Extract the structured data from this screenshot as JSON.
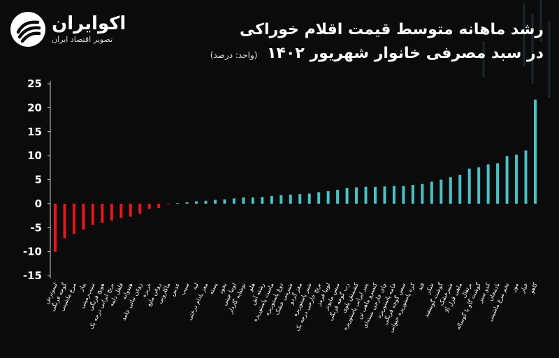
{
  "brand": {
    "name": "اکوایران",
    "tagline": "تصویر اقتصاد ایران"
  },
  "colors": {
    "background": "#0b0b0b",
    "positive": "#49c2c6",
    "negative": "#e8161b",
    "text": "#ffffff"
  },
  "chart_data": {
    "type": "bar",
    "title": "رشد ماهانه متوسط قیمت اقلام خوراکی",
    "subtitle": "در سبد مصرفی خانوار شهریور ۱۴۰۲",
    "unit_note": "(واحد: درصد)",
    "ylim": [
      -15,
      25
    ],
    "yticks": [
      25,
      20,
      15,
      10,
      5,
      0,
      -5,
      -10,
      -15
    ],
    "ytick_labels": [
      "25",
      "20",
      "15",
      "10",
      "5",
      "0",
      "-5",
      "-10",
      "-15"
    ],
    "grid": false,
    "categories": [
      "لیموترش",
      "گوجه فرنگی",
      "مرغ ماشینی",
      "پیاز",
      "سیب‌زمینی",
      "هویج فرنگی",
      "برنج ایرانی درجه یک",
      "فلفل دلمه",
      "هندوانه",
      "روغن نباتی جامد",
      "خربزه",
      "روغن مایع",
      "ماکارونی",
      "عدس",
      "سیب",
      "لپه",
      "مغز بادام درختی",
      "پسته",
      "نخود",
      "لوبیا چیتی",
      "نوشابه گازدار",
      "هلو",
      "رشته آش",
      "ماست پاستوریزه",
      "دوغ پاستوریزه",
      "شیرینی خشک",
      "مغز گردو",
      "شیر پاستوریزه",
      "برنج خارجی درجه یک",
      "لوبیا قرمز",
      "سس مایونز",
      "رب گوجه فرنگی",
      "کشمش پلوی",
      "پنیر ایرانی پاستوریزه",
      "کنسرو ماهی تن",
      "چای خارجی بسته‌ای",
      "خامه پاستوریزه",
      "سس گوجه فرنگی",
      "کره پاستوریزه حیوانی",
      "قند",
      "شکر",
      "گوشت گوسفند",
      "شیرخشک",
      "ماهی قزل آلا",
      "پرتقال",
      "گوشت گاو یا گوساله",
      "کدو سبز",
      "بادمجان",
      "تخم مرغ ماشینی",
      "موز",
      "خیار",
      "کاهو"
    ],
    "values": [
      -10.0,
      -7.2,
      -6.3,
      -5.4,
      -4.4,
      -4.0,
      -3.5,
      -3.0,
      -2.7,
      -2.1,
      -1.1,
      -0.9,
      -0.1,
      0.1,
      0.3,
      0.5,
      0.6,
      0.8,
      0.9,
      1.1,
      1.3,
      1.3,
      1.4,
      1.6,
      1.8,
      1.9,
      2.0,
      2.1,
      2.4,
      2.6,
      2.9,
      3.3,
      3.4,
      3.5,
      3.5,
      3.6,
      3.7,
      3.7,
      3.9,
      4.1,
      4.6,
      5.0,
      5.5,
      6.0,
      7.3,
      7.6,
      8.2,
      8.4,
      9.9,
      10.2,
      11.1,
      21.7
    ]
  }
}
